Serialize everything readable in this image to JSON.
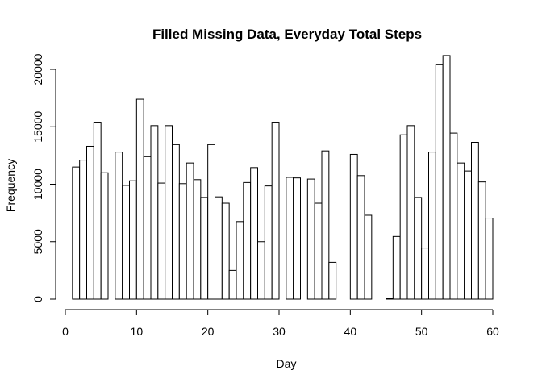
{
  "chart_data": {
    "type": "bar",
    "title": "Filled Missing Data, Everyday Total Steps",
    "xlabel": "Day",
    "ylabel": "Frequency",
    "xlim": [
      0,
      60
    ],
    "ylim": [
      0,
      21194
    ],
    "x_ticks": [
      "0",
      "10",
      "20",
      "30",
      "40",
      "50",
      "60"
    ],
    "y_ticks": [
      "0",
      "5000",
      "10000",
      "15000",
      "20000"
    ],
    "grid": false,
    "bar_color": "#ffffff",
    "edge_color": "#000000",
    "x": [
      2,
      3,
      4,
      5,
      6,
      7,
      8,
      9,
      10,
      11,
      12,
      13,
      14,
      15,
      16,
      17,
      18,
      19,
      20,
      21,
      22,
      23,
      24,
      25,
      26,
      27,
      28,
      29,
      30,
      31,
      32,
      33,
      34,
      35,
      36,
      37,
      38,
      39,
      40,
      41,
      42,
      43,
      44,
      45,
      46,
      47,
      48,
      49,
      50,
      51,
      52,
      53,
      54,
      55,
      56,
      57,
      58,
      59,
      60
    ],
    "values": [
      11500,
      12100,
      13300,
      15400,
      11000,
      0,
      12800,
      9900,
      10300,
      17400,
      12400,
      15100,
      10100,
      15100,
      13450,
      10050,
      11850,
      10400,
      8850,
      13450,
      8900,
      8350,
      2500,
      6750,
      10150,
      11450,
      5000,
      9850,
      15400,
      0,
      10600,
      10550,
      0,
      10450,
      8350,
      12900,
      3200,
      0,
      0,
      12600,
      10750,
      7300,
      0,
      0,
      50,
      5450,
      14300,
      15100,
      8850,
      4450,
      12800,
      20400,
      21200,
      14450,
      11850,
      11150,
      13650,
      10200,
      7050
    ]
  }
}
